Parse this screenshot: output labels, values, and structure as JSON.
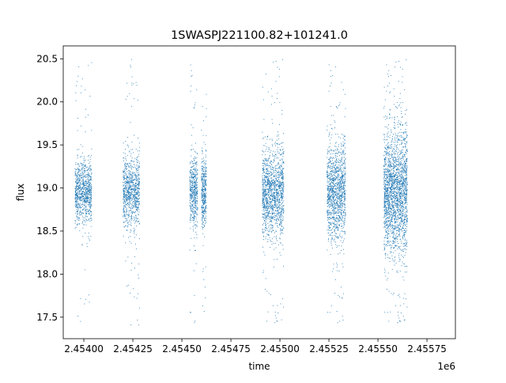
{
  "chart_data": {
    "type": "scatter",
    "title": "1SWASPJ221100.82+101241.0",
    "xlabel": "time",
    "ylabel": "flux",
    "x_offset_label": "1e6",
    "xlim": [
      2453895,
      2455895
    ],
    "ylim": [
      17.25,
      20.65
    ],
    "x_ticks": [
      2454000,
      2454250,
      2454500,
      2454750,
      2455000,
      2455250,
      2455500,
      2455750
    ],
    "x_tick_labels": [
      "2.45400",
      "2.45425",
      "2.45450",
      "2.45475",
      "2.45500",
      "2.45525",
      "2.45550",
      "2.45575"
    ],
    "y_ticks": [
      17.5,
      18.0,
      18.5,
      19.0,
      19.5,
      20.0,
      20.5
    ],
    "y_tick_labels": [
      "17.5",
      "18.0",
      "18.5",
      "19.0",
      "19.5",
      "20.0",
      "20.5"
    ],
    "grid": false,
    "point_color": "#1f77b4",
    "seasons": [
      {
        "t_start": 2453955,
        "t_end": 2454040,
        "center": 18.95,
        "spread": 0.18,
        "n": 900
      },
      {
        "t_start": 2454200,
        "t_end": 2454285,
        "center": 18.95,
        "spread": 0.2,
        "n": 900
      },
      {
        "t_start": 2454540,
        "t_end": 2454580,
        "center": 18.95,
        "spread": 0.2,
        "n": 500
      },
      {
        "t_start": 2454600,
        "t_end": 2454625,
        "center": 18.95,
        "spread": 0.2,
        "n": 400
      },
      {
        "t_start": 2454910,
        "t_end": 2455020,
        "center": 18.95,
        "spread": 0.25,
        "n": 1400
      },
      {
        "t_start": 2455240,
        "t_end": 2455335,
        "center": 18.95,
        "spread": 0.27,
        "n": 1300
      },
      {
        "t_start": 2455530,
        "t_end": 2455650,
        "center": 18.95,
        "spread": 0.35,
        "n": 2200
      }
    ]
  }
}
